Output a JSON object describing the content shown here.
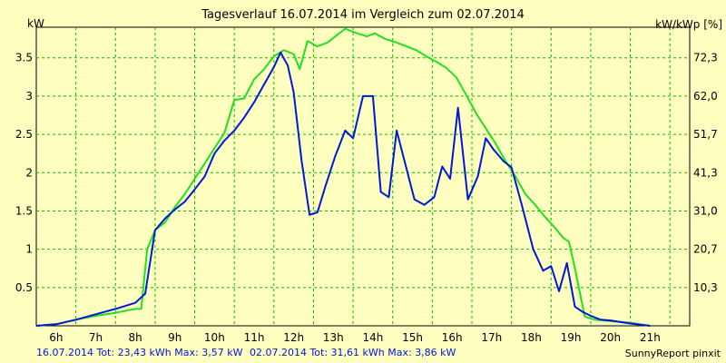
{
  "chart_data": {
    "type": "line",
    "title": "Tagesverlauf 16.07.2014 im Vergleich zum 02.07.2014",
    "ylabel_left": "kW",
    "ylabel_right": "kW/kWp [%]",
    "x_ticks": [
      "6h",
      "7h",
      "8h",
      "9h",
      "10h",
      "11h",
      "12h",
      "13h",
      "14h",
      "15h",
      "16h",
      "17h",
      "18h",
      "19h",
      "20h",
      "21h"
    ],
    "xlim": [
      5.5,
      22
    ],
    "ylim": [
      0,
      3.9
    ],
    "y_ticks_left": [
      "0.5",
      "1",
      "1.5",
      "2",
      "2.5",
      "3",
      "3.5"
    ],
    "y_ticks_right": [
      "10,3",
      "20,7",
      "31,0",
      "41,3",
      "51,7",
      "62,0",
      "72,3"
    ],
    "grid": true,
    "colors": {
      "background": "#ffffc0",
      "grid": "#00c000",
      "series_1": "#0018d8",
      "series_2": "#20e020"
    },
    "series": [
      {
        "name": "16.07.2014",
        "points": [
          [
            5.5,
            0
          ],
          [
            6,
            0.02
          ],
          [
            6.5,
            0.08
          ],
          [
            7,
            0.15
          ],
          [
            7.5,
            0.22
          ],
          [
            8,
            0.3
          ],
          [
            8.25,
            0.42
          ],
          [
            8.5,
            1.25
          ],
          [
            8.75,
            1.4
          ],
          [
            9,
            1.52
          ],
          [
            9.25,
            1.62
          ],
          [
            9.5,
            1.78
          ],
          [
            9.75,
            1.95
          ],
          [
            10,
            2.25
          ],
          [
            10.25,
            2.42
          ],
          [
            10.5,
            2.55
          ],
          [
            10.75,
            2.72
          ],
          [
            11,
            2.92
          ],
          [
            11.25,
            3.15
          ],
          [
            11.5,
            3.38
          ],
          [
            11.67,
            3.57
          ],
          [
            11.85,
            3.4
          ],
          [
            12,
            3.05
          ],
          [
            12.2,
            2.15
          ],
          [
            12.4,
            1.45
          ],
          [
            12.6,
            1.48
          ],
          [
            12.8,
            1.82
          ],
          [
            13.05,
            2.22
          ],
          [
            13.3,
            2.55
          ],
          [
            13.5,
            2.45
          ],
          [
            13.75,
            3
          ],
          [
            14,
            3
          ],
          [
            14.2,
            1.75
          ],
          [
            14.4,
            1.68
          ],
          [
            14.6,
            2.55
          ],
          [
            14.8,
            2.15
          ],
          [
            15.05,
            1.65
          ],
          [
            15.3,
            1.58
          ],
          [
            15.55,
            1.68
          ],
          [
            15.75,
            2.08
          ],
          [
            15.95,
            1.92
          ],
          [
            16.15,
            2.85
          ],
          [
            16.4,
            1.65
          ],
          [
            16.65,
            1.95
          ],
          [
            16.85,
            2.45
          ],
          [
            17.05,
            2.3
          ],
          [
            17.3,
            2.15
          ],
          [
            17.5,
            2.07
          ],
          [
            17.75,
            1.6
          ],
          [
            18.05,
            1.0
          ],
          [
            18.3,
            0.72
          ],
          [
            18.5,
            0.78
          ],
          [
            18.7,
            0.45
          ],
          [
            18.9,
            0.82
          ],
          [
            19.1,
            0.25
          ],
          [
            19.3,
            0.18
          ],
          [
            19.5,
            0.13
          ],
          [
            19.75,
            0.08
          ],
          [
            20,
            0.07
          ],
          [
            20.5,
            0.03
          ],
          [
            21,
            0
          ]
        ]
      },
      {
        "name": "02.07.2014",
        "points": [
          [
            5.5,
            0
          ],
          [
            6,
            0.02
          ],
          [
            6.5,
            0.08
          ],
          [
            7,
            0.13
          ],
          [
            7.5,
            0.17
          ],
          [
            8,
            0.22
          ],
          [
            8.15,
            0.22
          ],
          [
            8.3,
            1.0
          ],
          [
            8.5,
            1.25
          ],
          [
            8.75,
            1.35
          ],
          [
            9,
            1.55
          ],
          [
            9.25,
            1.72
          ],
          [
            9.5,
            1.92
          ],
          [
            9.75,
            2.12
          ],
          [
            10,
            2.32
          ],
          [
            10.25,
            2.52
          ],
          [
            10.5,
            2.95
          ],
          [
            10.75,
            2.97
          ],
          [
            11,
            3.22
          ],
          [
            11.25,
            3.35
          ],
          [
            11.5,
            3.52
          ],
          [
            11.75,
            3.6
          ],
          [
            12,
            3.55
          ],
          [
            12.15,
            3.35
          ],
          [
            12.35,
            3.72
          ],
          [
            12.6,
            3.65
          ],
          [
            12.85,
            3.7
          ],
          [
            13.05,
            3.78
          ],
          [
            13.3,
            3.88
          ],
          [
            13.6,
            3.82
          ],
          [
            13.85,
            3.78
          ],
          [
            14.05,
            3.82
          ],
          [
            14.3,
            3.75
          ],
          [
            14.6,
            3.7
          ],
          [
            14.85,
            3.65
          ],
          [
            15.1,
            3.6
          ],
          [
            15.35,
            3.52
          ],
          [
            15.6,
            3.45
          ],
          [
            15.85,
            3.37
          ],
          [
            16.1,
            3.25
          ],
          [
            16.35,
            3.02
          ],
          [
            16.6,
            2.78
          ],
          [
            16.85,
            2.58
          ],
          [
            17.1,
            2.38
          ],
          [
            17.35,
            2.15
          ],
          [
            17.6,
            1.95
          ],
          [
            17.85,
            1.72
          ],
          [
            18.1,
            1.58
          ],
          [
            18.35,
            1.42
          ],
          [
            18.6,
            1.28
          ],
          [
            18.8,
            1.15
          ],
          [
            18.95,
            1.1
          ],
          [
            19.1,
            0.75
          ],
          [
            19.35,
            0.12
          ],
          [
            19.6,
            0.08
          ],
          [
            20,
            0.06
          ],
          [
            20.5,
            0.04
          ],
          [
            21,
            0.0
          ]
        ]
      }
    ]
  },
  "footer": {
    "series1_text": "16.07.2014 Tot: 23,43 kWh Max: 3,57 kW",
    "series2_text": "02.07.2014 Tot: 31,61 kWh Max: 3,86 kW",
    "credit": "SunnyReport pinxit"
  }
}
